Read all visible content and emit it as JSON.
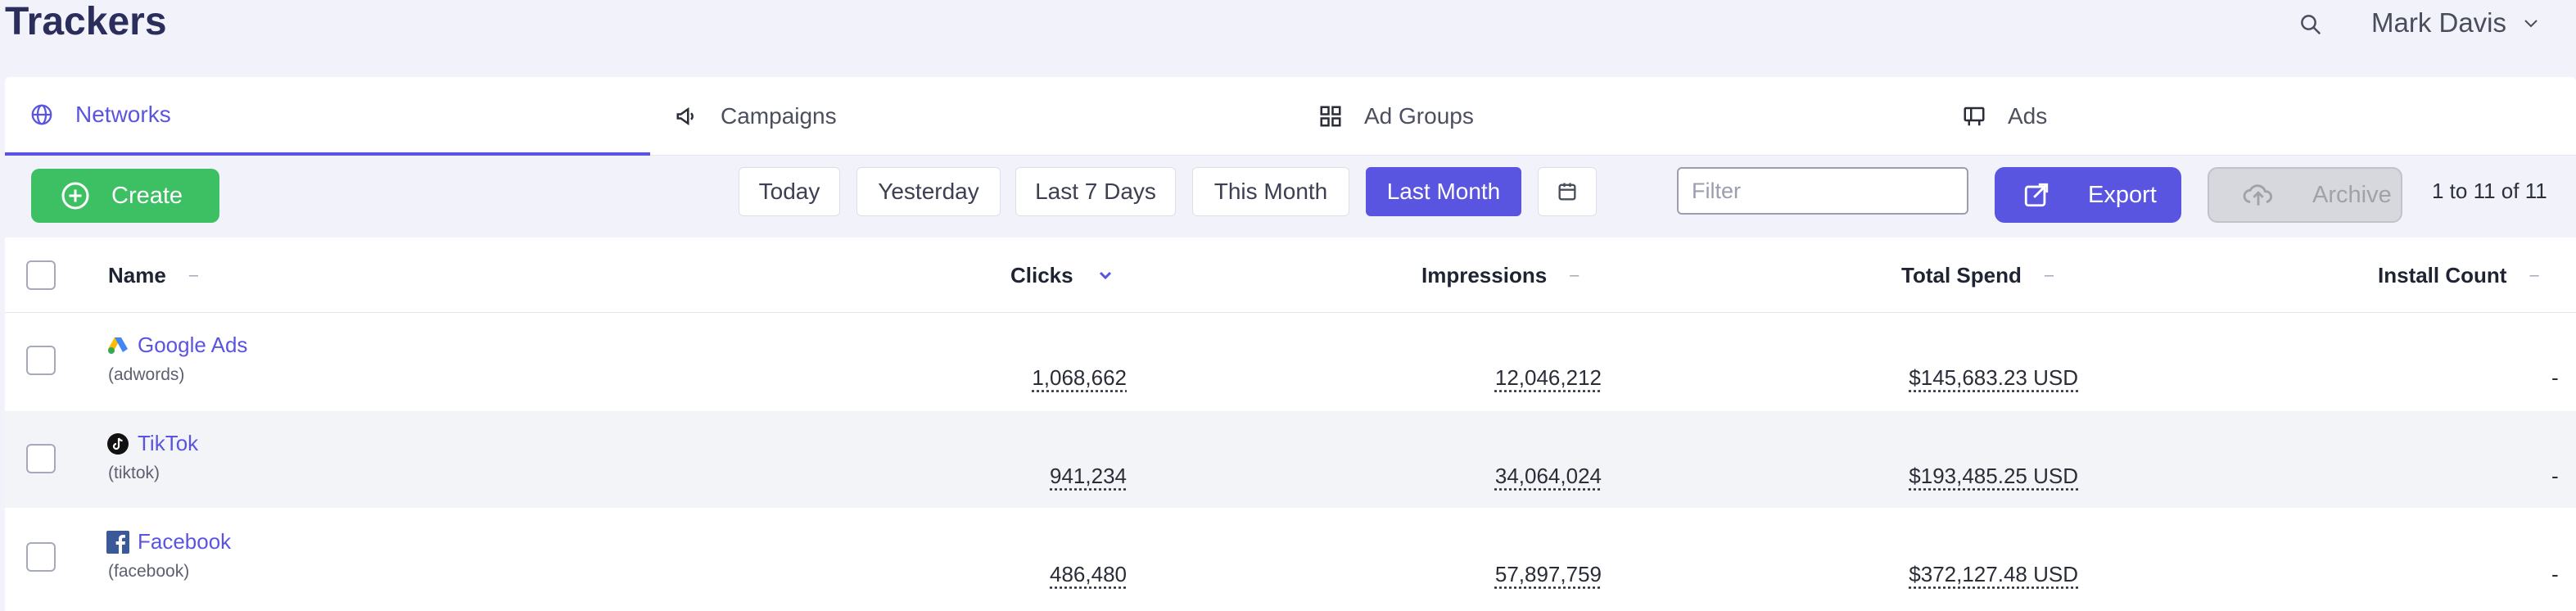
{
  "header": {
    "title": "Trackers",
    "user_name": "Mark Davis"
  },
  "tabs": [
    {
      "label": "Networks",
      "icon": "globe-icon",
      "active": true
    },
    {
      "label": "Campaigns",
      "icon": "megaphone-icon",
      "active": false
    },
    {
      "label": "Ad Groups",
      "icon": "grid-icon",
      "active": false
    },
    {
      "label": "Ads",
      "icon": "billboard-icon",
      "active": false
    }
  ],
  "toolbar": {
    "create_label": "Create",
    "ranges": [
      "Today",
      "Yesterday",
      "Last 7 Days",
      "This Month",
      "Last Month"
    ],
    "active_range": "Last Month",
    "filter_placeholder": "Filter",
    "export_label": "Export",
    "archive_label": "Archive",
    "pagination": "1 to 11 of 11"
  },
  "table": {
    "columns": [
      "Name",
      "Clicks",
      "Impressions",
      "Total Spend",
      "Install Count"
    ],
    "sorted_column": "Clicks",
    "rows": [
      {
        "name": "Google Ads",
        "sub": "(adwords)",
        "icon": "google-ads-icon",
        "clicks": "1,068,662",
        "impressions": "12,046,212",
        "spend": "$145,683.23 USD",
        "installs": "-"
      },
      {
        "name": "TikTok",
        "sub": "(tiktok)",
        "icon": "tiktok-icon",
        "clicks": "941,234",
        "impressions": "34,064,024",
        "spend": "$193,485.25 USD",
        "installs": "-"
      },
      {
        "name": "Facebook",
        "sub": "(facebook)",
        "icon": "facebook-icon",
        "clicks": "486,480",
        "impressions": "57,897,759",
        "spend": "$372,127.48 USD",
        "installs": "-"
      }
    ]
  },
  "colors": {
    "accent": "#5a55e0",
    "create": "#3cc063",
    "title": "#2b2e5c"
  }
}
